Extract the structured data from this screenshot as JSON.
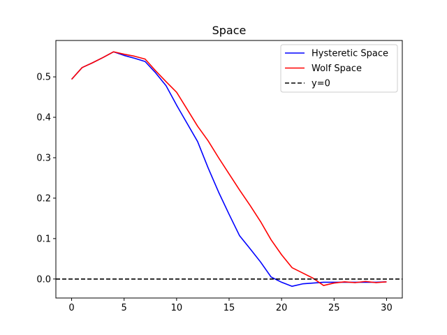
{
  "chart_data": {
    "type": "line",
    "title": "Space",
    "xlabel": "",
    "ylabel": "",
    "xlim": [
      -1.5,
      31.5
    ],
    "ylim": [
      -0.047,
      0.59
    ],
    "xticks": [
      0,
      5,
      10,
      15,
      20,
      25,
      30
    ],
    "yticks": [
      0.0,
      0.1,
      0.2,
      0.3,
      0.4,
      0.5
    ],
    "ytick_labels": [
      "0.0",
      "0.1",
      "0.2",
      "0.3",
      "0.4",
      "0.5"
    ],
    "grid": false,
    "legend_position": "top-right",
    "series": [
      {
        "name": "Hysteretic Space",
        "color": "#0000ff",
        "style": "solid",
        "x": [
          0,
          1,
          2,
          3,
          4,
          5,
          6,
          7,
          8,
          9,
          10,
          11,
          12,
          13,
          14,
          15,
          16,
          17,
          18,
          19,
          20,
          21,
          22,
          23,
          24,
          25,
          26,
          27,
          28,
          29,
          30
        ],
        "y": [
          0.494,
          0.523,
          0.535,
          0.548,
          0.562,
          0.553,
          0.546,
          0.538,
          0.51,
          0.478,
          0.43,
          0.385,
          0.34,
          0.275,
          0.215,
          0.16,
          0.107,
          0.075,
          0.042,
          0.005,
          -0.008,
          -0.018,
          -0.012,
          -0.01,
          -0.008,
          -0.008,
          -0.008,
          -0.008,
          -0.008,
          -0.008,
          -0.007
        ]
      },
      {
        "name": "Wolf Space",
        "color": "#ff0000",
        "style": "solid",
        "x": [
          0,
          1,
          2,
          3,
          4,
          5,
          6,
          7,
          8,
          9,
          10,
          11,
          12,
          13,
          14,
          15,
          16,
          17,
          18,
          19,
          20,
          21,
          22,
          23,
          24,
          25,
          26,
          27,
          28,
          29,
          30
        ],
        "y": [
          0.494,
          0.523,
          0.535,
          0.548,
          0.562,
          0.556,
          0.551,
          0.544,
          0.515,
          0.488,
          0.462,
          0.42,
          0.378,
          0.342,
          0.3,
          0.26,
          0.22,
          0.182,
          0.142,
          0.097,
          0.06,
          0.028,
          0.015,
          0.002,
          -0.016,
          -0.01,
          -0.007,
          -0.009,
          -0.006,
          -0.009,
          -0.007
        ]
      },
      {
        "name": "y=0",
        "color": "#000000",
        "style": "dashed",
        "hline": 0
      }
    ]
  }
}
